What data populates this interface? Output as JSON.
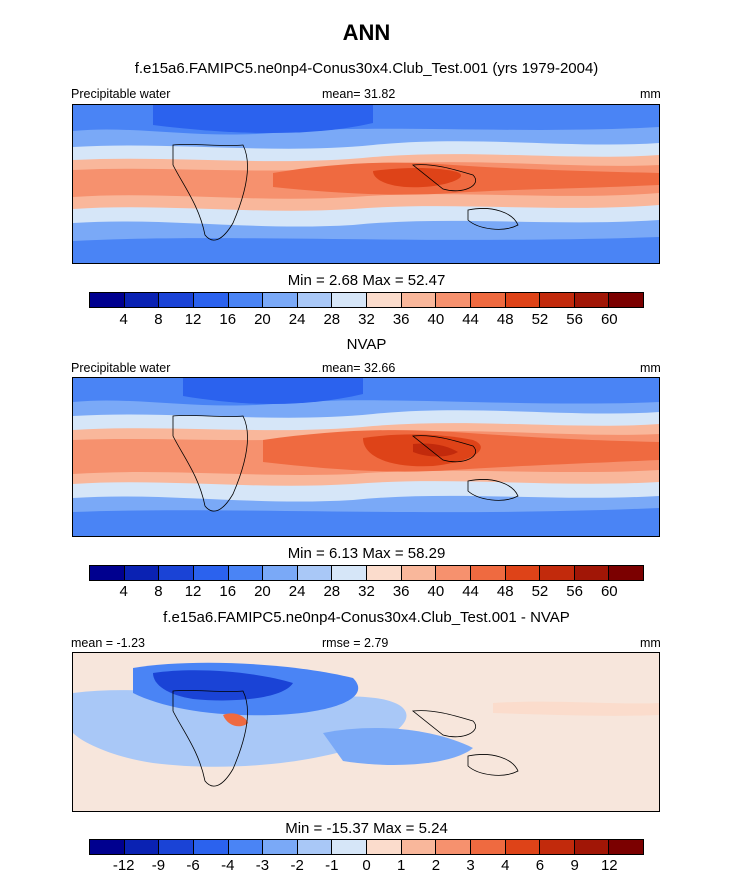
{
  "title": "ANN",
  "palette": [
    "#00008f",
    "#0a22b3",
    "#1a43d6",
    "#2b62ee",
    "#4a84f5",
    "#7aa9f7",
    "#a9c8f7",
    "#d6e6f8",
    "#fbdccc",
    "#f9b79b",
    "#f6916e",
    "#ef6a40",
    "#de4318",
    "#c22a0c",
    "#a11606",
    "#7b0000"
  ],
  "panels": [
    {
      "id": "model",
      "subtitle": "f.e15a6.FAMIPC5.ne0np4-Conus30x4.Club_Test.001 (yrs 1979-2004)",
      "left_label": "Precipitable water",
      "center_label": "mean=  31.82",
      "right_label": "mm",
      "minmax": "Min =   2.68 Max =  52.47"
    },
    {
      "id": "obs",
      "subtitle": "NVAP",
      "left_label": "Precipitable water",
      "center_label": "mean=  32.66",
      "right_label": "mm",
      "minmax": "Min =   6.13 Max =  58.29"
    },
    {
      "id": "diff",
      "subtitle": "f.e15a6.FAMIPC5.ne0np4-Conus30x4.Club_Test.001 - NVAP",
      "left_label": "mean =  -1.23",
      "center_label": "rmse =   2.79",
      "right_label": "mm",
      "minmax": "Min = -15.37 Max =   5.24"
    }
  ],
  "chart_data": [
    {
      "type": "heatmap",
      "title": "f.e15a6.FAMIPC5.ne0np4-Conus30x4.Club_Test.001 (yrs 1979-2004)",
      "variable": "Precipitable water",
      "units": "mm",
      "mean": 31.82,
      "min": 2.68,
      "max": 52.47,
      "colorbar_levels": [
        4,
        8,
        12,
        16,
        20,
        24,
        28,
        32,
        36,
        40,
        44,
        48,
        52,
        56,
        60
      ]
    },
    {
      "type": "heatmap",
      "title": "NVAP",
      "variable": "Precipitable water",
      "units": "mm",
      "mean": 32.66,
      "min": 6.13,
      "max": 58.29,
      "colorbar_levels": [
        4,
        8,
        12,
        16,
        20,
        24,
        28,
        32,
        36,
        40,
        44,
        48,
        52,
        56,
        60
      ]
    },
    {
      "type": "heatmap",
      "title": "f.e15a6.FAMIPC5.ne0np4-Conus30x4.Club_Test.001 - NVAP",
      "units": "mm",
      "mean": -1.23,
      "rmse": 2.79,
      "min": -15.37,
      "max": 5.24,
      "colorbar_levels": [
        -12,
        -9,
        -6,
        -4,
        -3,
        -2,
        -1,
        0,
        1,
        2,
        3,
        4,
        6,
        9,
        12
      ]
    }
  ]
}
